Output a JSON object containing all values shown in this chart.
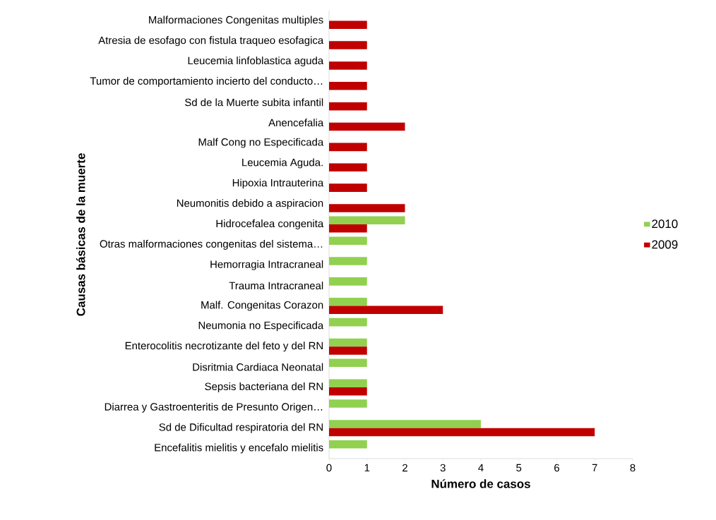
{
  "chart_data": {
    "type": "bar",
    "orientation": "horizontal",
    "xlabel": "Número de casos",
    "ylabel": "Causas básicas de la muerte",
    "categories": [
      "Malformaciones Congenitas multiples",
      "Atresia de esofago con fistula traqueo esofagica",
      "Leucemia linfoblastica aguda",
      "Tumor de comportamiento incierto del conducto…",
      "Sd de la Muerte subita infantil",
      "Anencefalia",
      "Malf Cong no Especificada",
      "Leucemia Aguda.",
      "Hipoxia Intrauterina",
      "Neumonitis debido a aspiracion",
      "Hidrocefalea congenita",
      "Otras malformaciones congenitas del sistema…",
      "Hemorragia Intracraneal",
      "Trauma Intracraneal",
      "Malf. Congenitas Corazon",
      "Neumonia no Especificada",
      "Enterocolitis necrotizante del feto y del RN",
      "Disritmia Cardiaca Neonatal",
      "Sepsis bacteriana del RN",
      "Diarrea y Gastroenteritis de Presunto Origen…",
      "Sd de Dificultad respiratoria del RN",
      "Encefalitis mielitis y encefalo mielitis"
    ],
    "series": [
      {
        "name": "2010",
        "color": "#92d050",
        "values": [
          null,
          null,
          null,
          null,
          null,
          null,
          null,
          null,
          null,
          null,
          2,
          1,
          1,
          1,
          1,
          1,
          1,
          1,
          1,
          1,
          4,
          1
        ]
      },
      {
        "name": "2009",
        "color": "#c00000",
        "values": [
          1,
          1,
          1,
          1,
          1,
          2,
          1,
          1,
          1,
          2,
          1,
          null,
          null,
          null,
          3,
          null,
          1,
          null,
          1,
          null,
          7,
          null
        ]
      }
    ],
    "xlim": [
      0,
      8
    ],
    "xticks": [
      0,
      1,
      2,
      3,
      4,
      5,
      6,
      7,
      8
    ],
    "legend": "right"
  }
}
